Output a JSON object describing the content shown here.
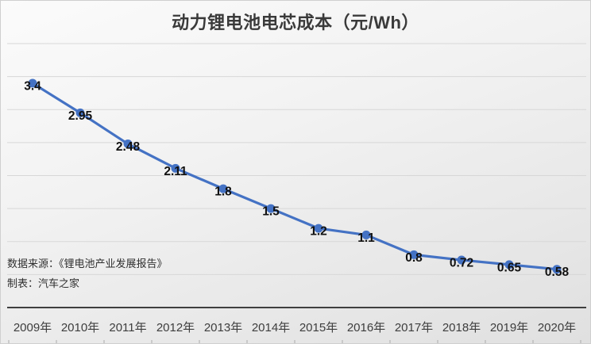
{
  "chart_data": {
    "type": "line",
    "title": "动力锂电池电芯成本（元/Wh）",
    "categories": [
      "2009年",
      "2010年",
      "2011年",
      "2012年",
      "2013年",
      "2014年",
      "2015年",
      "2016年",
      "2017年",
      "2018年",
      "2019年",
      "2020年"
    ],
    "values": [
      3.4,
      2.95,
      2.48,
      2.11,
      1.8,
      1.5,
      1.2,
      1.1,
      0.8,
      0.72,
      0.65,
      0.58
    ],
    "value_labels": [
      "3.4",
      "2.95",
      "2.48",
      "2.11",
      "1.8",
      "1.5",
      "1.2",
      "1.1",
      "0.8",
      "0.72",
      "0.65",
      "0.58"
    ],
    "xlabel": "",
    "ylabel": "",
    "ylim": [
      0,
      4
    ],
    "grid_step": 0.5,
    "grid": true,
    "legend_position": "none",
    "data_label_position": "center",
    "line_color": "#4472C4",
    "marker": "circle",
    "gridline_color": "#d7d7d7",
    "axis_line_color": "#3f3f3f",
    "tick_color": "#ababab",
    "data_label_color": "#111111",
    "axis_label_color": "#3d3d3d",
    "source_note": "数据来源：《锂电池产业发展报告》",
    "credit_note": "制表：汽车之家"
  }
}
